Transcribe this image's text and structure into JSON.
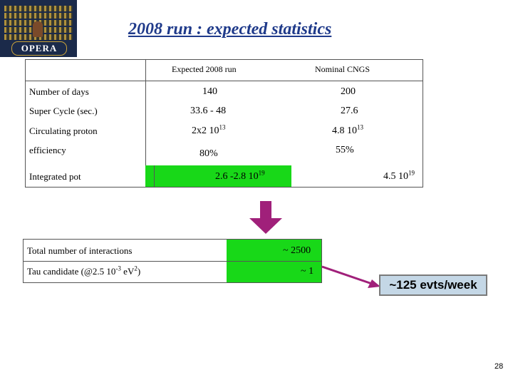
{
  "logo": {
    "text": "OPERA"
  },
  "title": "2008 run : expected statistics",
  "table": {
    "headers": [
      "Expected 2008 run",
      "Nominal CNGS"
    ],
    "rows": [
      {
        "label": "Number of days",
        "expected": "140",
        "nominal": "200"
      },
      {
        "label": "Super Cycle (sec.)",
        "expected": "33.6 - 48",
        "nominal": "27.6"
      },
      {
        "label": "Circulating proton",
        "expected_base": "2x2 10",
        "expected_exp": "13",
        "nominal_base": "4.8 10",
        "nominal_exp": "13"
      },
      {
        "label": "efficiency",
        "expected": "80%",
        "nominal": "55%"
      },
      {
        "label": "Integrated pot",
        "expected_base": "2.6 -2.8 10",
        "expected_exp": "19",
        "nominal_base": "4.5 10",
        "nominal_exp": "19"
      }
    ]
  },
  "results": {
    "rows": [
      {
        "label": "Total number of interactions",
        "value": "~ 2500"
      },
      {
        "label_pre": "Tau candidate (@2.5 10",
        "label_exp1": "-3",
        "label_mid": " eV",
        "label_exp2": "2",
        "label_post": ")",
        "value": "~ 1"
      }
    ]
  },
  "callout": "~125 evts/week",
  "page_number": "28",
  "colors": {
    "title": "#1f3a8a",
    "highlight": "#18d818",
    "arrow": "#a0207a",
    "callout_bg": "#c4d7e6"
  }
}
